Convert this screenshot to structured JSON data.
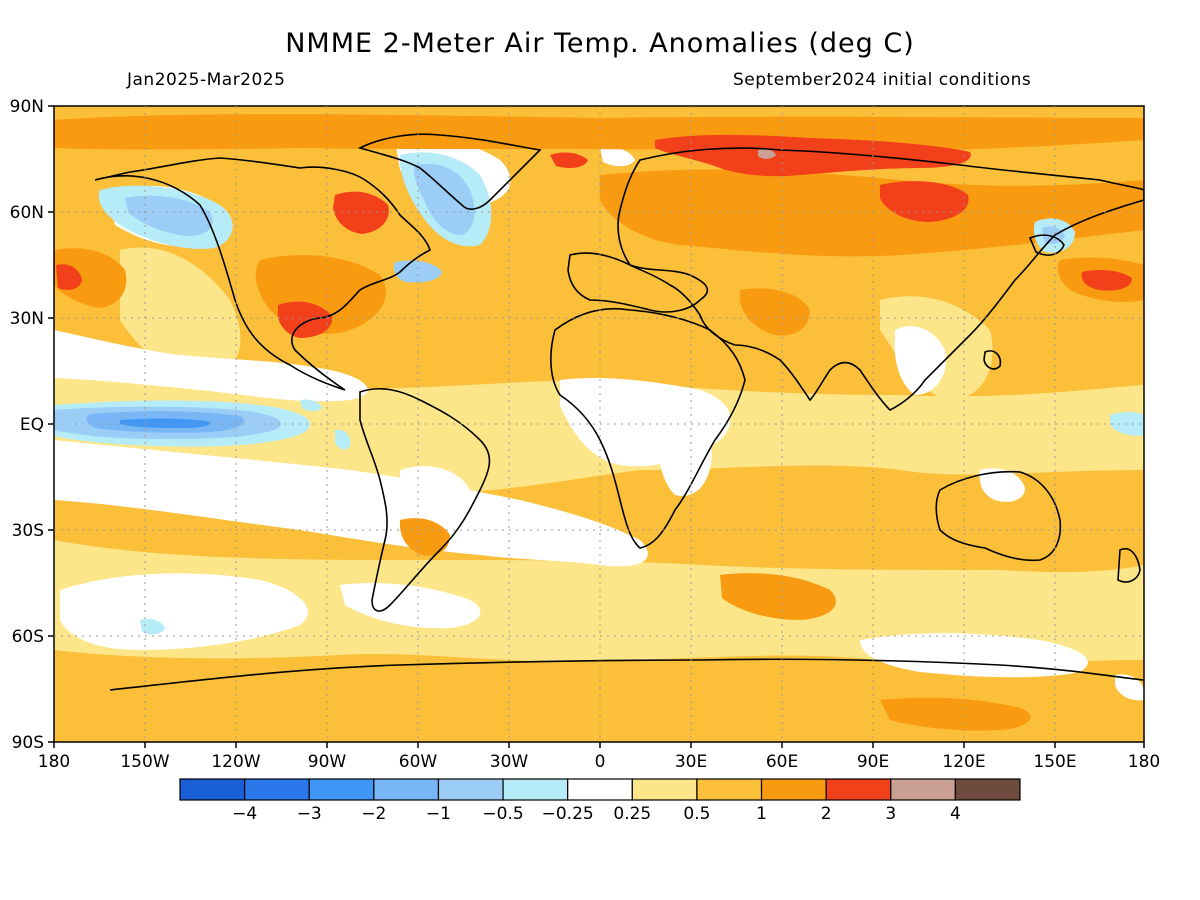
{
  "title": "NMME 2-Meter Air Temp. Anomalies (deg C)",
  "subtitle_left": "Jan2025-Mar2025",
  "subtitle_right": "September2024 initial conditions",
  "lat_labels": [
    "90N",
    "60N",
    "30N",
    "EQ",
    "30S",
    "60S",
    "90S"
  ],
  "lon_labels": [
    "180",
    "150W",
    "120W",
    "90W",
    "60W",
    "30W",
    "0",
    "30E",
    "60E",
    "90E",
    "120E",
    "150E",
    "180"
  ],
  "colorbar": {
    "colors": [
      "#1a5fd6",
      "#2a78ea",
      "#3f97f5",
      "#78b6f6",
      "#9ccdf7",
      "#b6ecf7",
      "#ffffff",
      "#fde68a",
      "#fbbf3a",
      "#f89b10",
      "#f1401a",
      "#c9a093",
      "#6f4a3e"
    ],
    "labels": [
      "-4",
      "-3",
      "-2",
      "-1",
      "-0.5",
      "-0.25",
      "0.25",
      "0.5",
      "1",
      "2",
      "3",
      "4"
    ]
  },
  "colors": {
    "warm_base": "#fbbf3a",
    "ocean_warm": "#fbbf3a",
    "neutral": "#ffffff"
  }
}
